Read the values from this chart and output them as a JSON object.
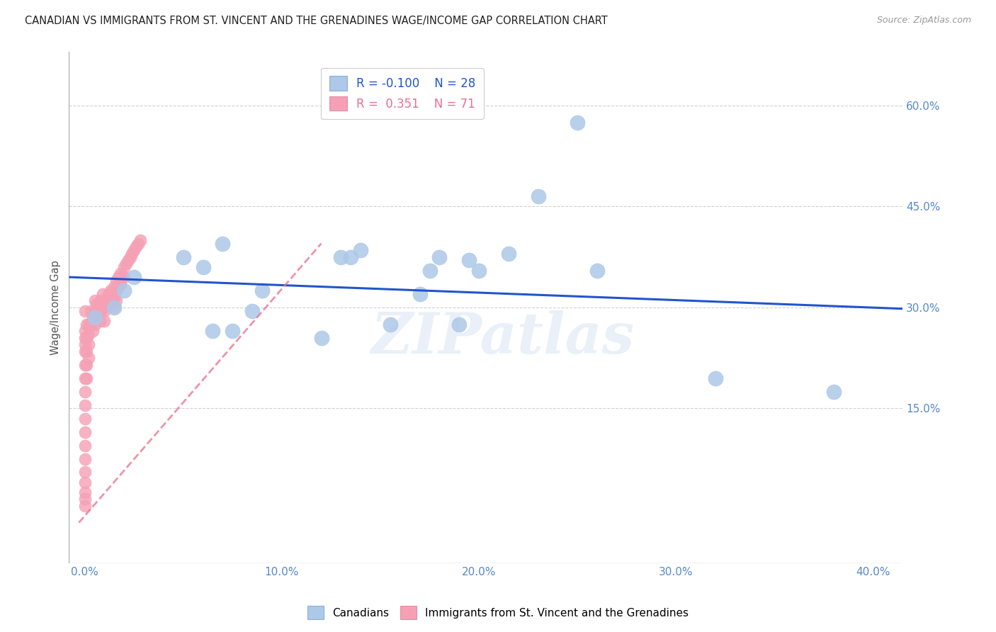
{
  "title": "CANADIAN VS IMMIGRANTS FROM ST. VINCENT AND THE GRENADINES WAGE/INCOME GAP CORRELATION CHART",
  "source": "Source: ZipAtlas.com",
  "ylabel": "Wage/Income Gap",
  "xlabel_ticks": [
    "0.0%",
    "10.0%",
    "20.0%",
    "30.0%",
    "40.0%"
  ],
  "xlabel_vals": [
    0.0,
    0.1,
    0.2,
    0.3,
    0.4
  ],
  "ylabel_ticks": [
    "15.0%",
    "30.0%",
    "45.0%",
    "60.0%"
  ],
  "ylabel_vals": [
    0.15,
    0.3,
    0.45,
    0.6
  ],
  "xlim": [
    -0.008,
    0.415
  ],
  "ylim": [
    -0.08,
    0.68
  ],
  "blue_R": -0.1,
  "blue_N": 28,
  "pink_R": 0.351,
  "pink_N": 71,
  "legend_label_blue": "Canadians",
  "legend_label_pink": "Immigrants from St. Vincent and the Grenadines",
  "watermark": "ZIPatlas",
  "blue_color": "#adc8e8",
  "blue_line_color": "#2255cc",
  "pink_color": "#f5a0b5",
  "pink_line_color": "#e87090",
  "title_color": "#333333",
  "axis_color": "#5588cc",
  "grid_color": "#cccccc",
  "blue_scatter_x": [
    0.005,
    0.015,
    0.02,
    0.025,
    0.05,
    0.06,
    0.065,
    0.07,
    0.075,
    0.085,
    0.09,
    0.12,
    0.13,
    0.135,
    0.14,
    0.155,
    0.17,
    0.175,
    0.18,
    0.19,
    0.195,
    0.2,
    0.215,
    0.23,
    0.25,
    0.26,
    0.32,
    0.38
  ],
  "blue_scatter_y": [
    0.285,
    0.3,
    0.325,
    0.345,
    0.375,
    0.36,
    0.265,
    0.395,
    0.265,
    0.295,
    0.325,
    0.255,
    0.375,
    0.375,
    0.385,
    0.275,
    0.32,
    0.355,
    0.375,
    0.275,
    0.37,
    0.355,
    0.38,
    0.465,
    0.575,
    0.355,
    0.195,
    0.175
  ],
  "pink_scatter_x": [
    0.0,
    0.0,
    0.0,
    0.0,
    0.0,
    0.0,
    0.0,
    0.0,
    0.0,
    0.0,
    0.0,
    0.0,
    0.0,
    0.0,
    0.0,
    0.0,
    0.0,
    0.0,
    0.001,
    0.001,
    0.001,
    0.001,
    0.001,
    0.002,
    0.002,
    0.002,
    0.002,
    0.003,
    0.003,
    0.004,
    0.004,
    0.005,
    0.005,
    0.005,
    0.006,
    0.006,
    0.007,
    0.008,
    0.008,
    0.008,
    0.009,
    0.009,
    0.01,
    0.01,
    0.01,
    0.012,
    0.012,
    0.013,
    0.013,
    0.014,
    0.015,
    0.015,
    0.015,
    0.016,
    0.016,
    0.016,
    0.017,
    0.017,
    0.018,
    0.018,
    0.019,
    0.02,
    0.02,
    0.021,
    0.022,
    0.023,
    0.024,
    0.025,
    0.026,
    0.027,
    0.028
  ],
  "pink_scatter_y": [
    0.295,
    0.265,
    0.255,
    0.245,
    0.235,
    0.215,
    0.195,
    0.175,
    0.155,
    0.135,
    0.115,
    0.095,
    0.075,
    0.055,
    0.04,
    0.025,
    0.015,
    0.005,
    0.275,
    0.255,
    0.235,
    0.215,
    0.195,
    0.275,
    0.26,
    0.245,
    0.225,
    0.295,
    0.275,
    0.285,
    0.265,
    0.31,
    0.295,
    0.275,
    0.305,
    0.285,
    0.295,
    0.31,
    0.295,
    0.28,
    0.32,
    0.3,
    0.31,
    0.295,
    0.28,
    0.32,
    0.305,
    0.325,
    0.31,
    0.315,
    0.33,
    0.315,
    0.3,
    0.34,
    0.325,
    0.31,
    0.345,
    0.33,
    0.35,
    0.335,
    0.345,
    0.36,
    0.345,
    0.365,
    0.37,
    0.375,
    0.38,
    0.385,
    0.39,
    0.395,
    0.4
  ],
  "blue_trend_x0": -0.008,
  "blue_trend_x1": 0.415,
  "blue_trend_y0": 0.345,
  "blue_trend_y1": 0.298,
  "pink_trend_x0": -0.003,
  "pink_trend_x1": 0.12,
  "pink_trend_y0": -0.02,
  "pink_trend_y1": 0.395
}
